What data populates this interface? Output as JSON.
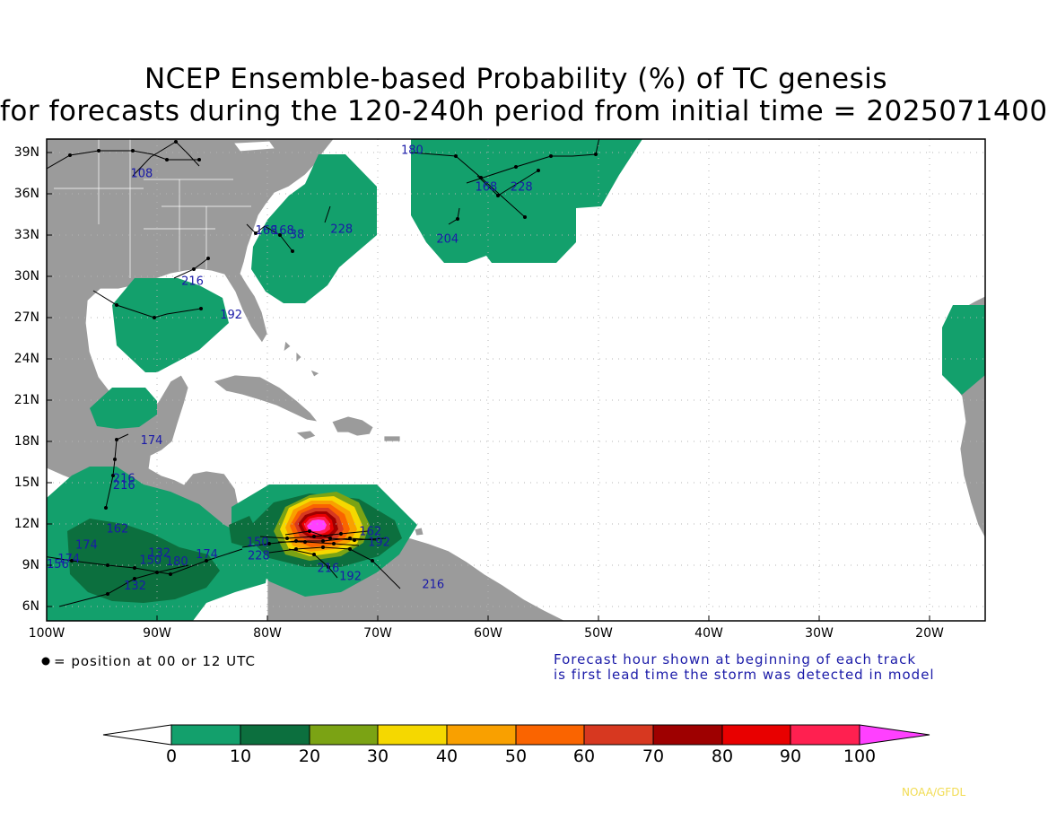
{
  "title": {
    "line1": "NCEP Ensemble-based Probability (%) of TC genesis",
    "line2": "for forecasts during the 120-240h period from initial time = 2025071400"
  },
  "map": {
    "lon_range": [
      -100,
      -15
    ],
    "lat_range": [
      4.6,
      40
    ],
    "lat_ticks": [
      "39N",
      "36N",
      "33N",
      "30N",
      "27N",
      "24N",
      "21N",
      "18N",
      "15N",
      "12N",
      "9N",
      "6N"
    ],
    "lon_ticks": [
      "100W",
      "90W",
      "80W",
      "70W",
      "60W",
      "50W",
      "40W",
      "30W",
      "20W"
    ],
    "land_color": "#9b9b9b",
    "ocean_color": "#ffffff",
    "track_numbers": [
      {
        "text": "108",
        "lon": -92.4,
        "lat": 37.2
      },
      {
        "text": "180",
        "lon": -67.9,
        "lat": 38.9
      },
      {
        "text": "168",
        "lon": -61.2,
        "lat": 36.2
      },
      {
        "text": "228",
        "lon": -58.0,
        "lat": 36.2
      },
      {
        "text": "204",
        "lon": -64.7,
        "lat": 32.4
      },
      {
        "text": "168",
        "lon": -81.1,
        "lat": 33.0
      },
      {
        "text": "168",
        "lon": -79.6,
        "lat": 33.0
      },
      {
        "text": "38",
        "lon": -78.0,
        "lat": 32.7
      },
      {
        "text": "228",
        "lon": -74.3,
        "lat": 33.1
      },
      {
        "text": "216",
        "lon": -87.8,
        "lat": 29.3
      },
      {
        "text": "192",
        "lon": -84.3,
        "lat": 26.8
      },
      {
        "text": "174",
        "lon": -91.5,
        "lat": 17.6
      },
      {
        "text": "216",
        "lon": -94.0,
        "lat": 14.8
      },
      {
        "text": "216",
        "lon": -94.0,
        "lat": 14.3
      },
      {
        "text": "162",
        "lon": -94.6,
        "lat": 11.1
      },
      {
        "text": "174",
        "lon": -97.4,
        "lat": 9.9
      },
      {
        "text": "174",
        "lon": -99.0,
        "lat": 8.9
      },
      {
        "text": "156",
        "lon": -100.0,
        "lat": 8.5
      },
      {
        "text": "132",
        "lon": -90.8,
        "lat": 9.3
      },
      {
        "text": "150",
        "lon": -91.6,
        "lat": 8.8
      },
      {
        "text": "180",
        "lon": -89.2,
        "lat": 8.7
      },
      {
        "text": "174",
        "lon": -86.5,
        "lat": 9.2
      },
      {
        "text": "132",
        "lon": -93.0,
        "lat": 6.9
      },
      {
        "text": "150",
        "lon": -81.9,
        "lat": 10.1
      },
      {
        "text": "228",
        "lon": -81.8,
        "lat": 9.1
      },
      {
        "text": "216",
        "lon": -75.5,
        "lat": 8.2
      },
      {
        "text": "192",
        "lon": -73.5,
        "lat": 7.6
      },
      {
        "text": "162",
        "lon": -71.7,
        "lat": 10.9
      },
      {
        "text": "192",
        "lon": -70.9,
        "lat": 10.1
      },
      {
        "text": "216",
        "lon": -66.0,
        "lat": 7.0
      }
    ]
  },
  "notes": {
    "dot_legend": "= position at 00 or 12 UTC",
    "forecast_line1": "Forecast hour shown at beginning of each track",
    "forecast_line2": "is first lead time the storm was detected in model"
  },
  "colorbar": {
    "labels": [
      "0",
      "10",
      "20",
      "30",
      "40",
      "50",
      "60",
      "70",
      "80",
      "90",
      "100"
    ],
    "colors": [
      "#13a06c",
      "#0c6f3e",
      "#7ba314",
      "#f5d800",
      "#f9a000",
      "#fa6400",
      "#d73820",
      "#9e0000",
      "#e80000",
      "#ff2050",
      "#ff40ff"
    ],
    "under_color": "#ffffff"
  },
  "credit": "NOAA/GFDL"
}
